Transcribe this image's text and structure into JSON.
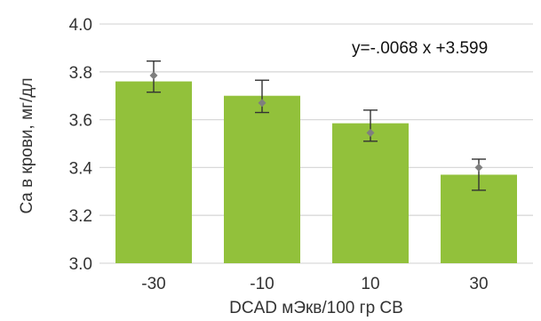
{
  "chart_data": {
    "type": "bar",
    "categories": [
      "-30",
      "-10",
      "10",
      "30"
    ],
    "values": [
      3.76,
      3.7,
      3.585,
      3.37
    ],
    "error_bars": {
      "markers": [
        3.785,
        3.67,
        3.545,
        3.4
      ],
      "upper": [
        3.845,
        3.765,
        3.64,
        3.435
      ],
      "lower": [
        3.715,
        3.63,
        3.51,
        3.305
      ]
    },
    "xlabel": "DCAD мЭкв/100 гр СВ",
    "ylabel": "Ca в крови, мг/дл",
    "ylim": [
      3.0,
      4.0
    ],
    "yticks": [
      "3.0",
      "3.2",
      "3.4",
      "3.6",
      "3.8",
      "4.0"
    ],
    "grid": true,
    "annotation": "y=-.0068 x +3.599",
    "colors": {
      "bar": "#92c13b",
      "error_bar": "#333333",
      "marker": "#7f7f7f",
      "grid": "#d9d9d9"
    }
  }
}
